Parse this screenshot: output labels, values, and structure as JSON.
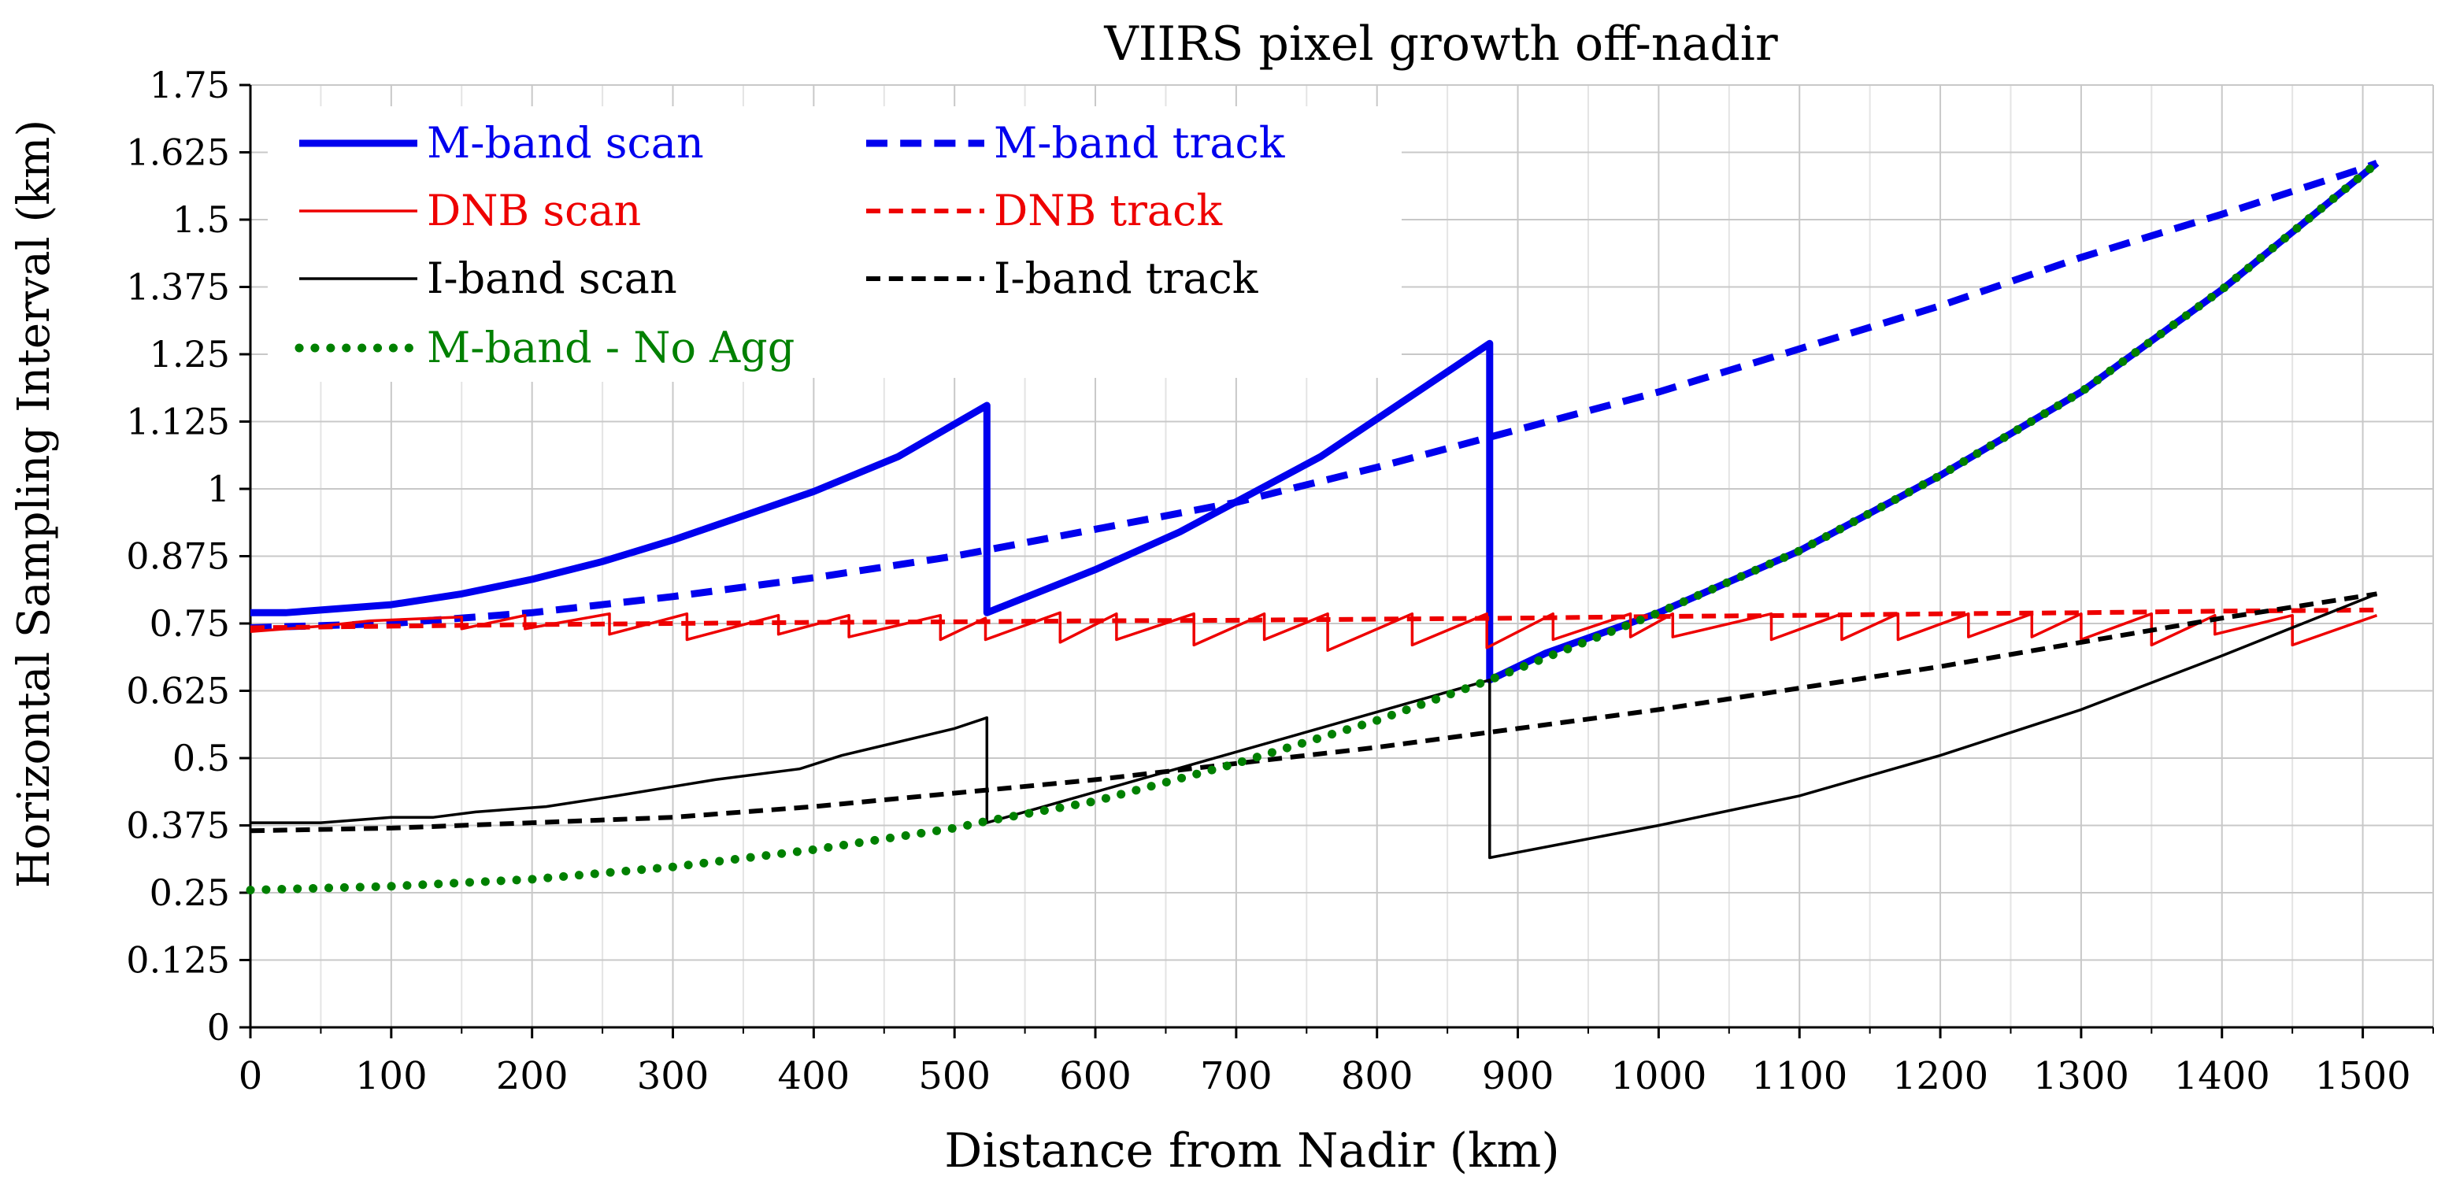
{
  "chart_data": {
    "type": "line",
    "title": "VIIRS pixel growth  off-nadir",
    "xlabel": "Distance from Nadir (km)",
    "ylabel": "Horizontal Sampling Interval (km)",
    "xlim": [
      0,
      1550
    ],
    "ylim": [
      0,
      1.75
    ],
    "grid": true,
    "legend_position": "top-left",
    "x_ticks": [
      0,
      100,
      200,
      300,
      400,
      500,
      600,
      700,
      800,
      900,
      1000,
      1100,
      1200,
      1300,
      1400,
      1500
    ],
    "x_tick_labels": [
      "0",
      "100",
      "200",
      "300",
      "400",
      "500",
      "600",
      "700",
      "800",
      "900",
      "1000",
      "1100",
      "1200",
      "1300",
      "1400",
      "1500"
    ],
    "y_ticks": [
      0,
      0.125,
      0.25,
      0.375,
      0.5,
      0.625,
      0.75,
      0.875,
      1,
      1.125,
      1.25,
      1.375,
      1.5,
      1.625,
      1.75
    ],
    "y_tick_labels": [
      "0",
      "0.125",
      "0.25",
      "0.375",
      "0.5",
      "0.625",
      "0.75",
      "0.875",
      "1",
      "1.125",
      "1.25",
      "1.375",
      "1.5",
      "1.625",
      "1.75"
    ],
    "series": [
      {
        "name": "M-band track",
        "color": "#0000ee",
        "style": "dashed",
        "width": "thick",
        "x": [
          0,
          100,
          200,
          300,
          400,
          500,
          600,
          700,
          800,
          900,
          1000,
          1100,
          1200,
          1300,
          1400,
          1500,
          1510
        ],
        "y": [
          0.742,
          0.75,
          0.77,
          0.8,
          0.835,
          0.875,
          0.925,
          0.975,
          1.04,
          1.11,
          1.18,
          1.26,
          1.34,
          1.43,
          1.51,
          1.595,
          1.605
        ]
      },
      {
        "name": "M-band scan",
        "color": "#0000ee",
        "style": "solid",
        "width": "thick",
        "x": [
          0,
          25,
          50,
          100,
          150,
          200,
          250,
          300,
          350,
          400,
          460,
          523,
          523,
          600,
          660,
          760,
          880,
          880,
          920,
          1000,
          1100,
          1200,
          1300,
          1400,
          1510
        ],
        "y": [
          0.77,
          0.77,
          0.775,
          0.785,
          0.805,
          0.832,
          0.865,
          0.905,
          0.95,
          0.995,
          1.06,
          1.155,
          0.77,
          0.85,
          0.92,
          1.06,
          1.27,
          0.645,
          0.695,
          0.77,
          0.885,
          1.025,
          1.18,
          1.37,
          1.605
        ]
      },
      {
        "name": "DNB track",
        "color": "#ee0000",
        "style": "dashed",
        "width": "medium",
        "x": [
          0,
          100,
          200,
          300,
          400,
          500,
          600,
          700,
          800,
          900,
          1000,
          1100,
          1200,
          1300,
          1400,
          1510
        ],
        "y": [
          0.742,
          0.745,
          0.748,
          0.75,
          0.752,
          0.753,
          0.755,
          0.756,
          0.758,
          0.76,
          0.763,
          0.765,
          0.768,
          0.77,
          0.773,
          0.775
        ]
      },
      {
        "name": "DNB scan",
        "color": "#ee0000",
        "style": "solid",
        "width": "thin",
        "x": [
          0,
          50,
          85,
          85,
          150,
          150,
          195,
          195,
          255,
          255,
          310,
          310,
          375,
          375,
          425,
          425,
          490,
          490,
          522,
          522,
          575,
          575,
          615,
          615,
          670,
          670,
          720,
          720,
          765,
          765,
          825,
          825,
          878,
          878,
          925,
          925,
          980,
          980,
          1010,
          1010,
          1080,
          1080,
          1130,
          1130,
          1170,
          1170,
          1220,
          1220,
          1265,
          1265,
          1300,
          1300,
          1350,
          1350,
          1395,
          1395,
          1450,
          1450,
          1510
        ],
        "y": [
          0.735,
          0.745,
          0.755,
          0.755,
          0.762,
          0.74,
          0.765,
          0.74,
          0.768,
          0.73,
          0.768,
          0.72,
          0.765,
          0.73,
          0.765,
          0.725,
          0.765,
          0.72,
          0.76,
          0.72,
          0.77,
          0.715,
          0.768,
          0.72,
          0.768,
          0.71,
          0.768,
          0.72,
          0.768,
          0.7,
          0.768,
          0.71,
          0.768,
          0.705,
          0.768,
          0.72,
          0.768,
          0.725,
          0.768,
          0.725,
          0.768,
          0.72,
          0.768,
          0.72,
          0.768,
          0.72,
          0.768,
          0.725,
          0.768,
          0.725,
          0.768,
          0.72,
          0.768,
          0.71,
          0.765,
          0.73,
          0.765,
          0.71,
          0.765
        ]
      },
      {
        "name": "I-band track",
        "color": "#000000",
        "style": "dashed",
        "width": "medium",
        "x": [
          0,
          100,
          200,
          300,
          400,
          500,
          600,
          700,
          800,
          900,
          1000,
          1100,
          1200,
          1300,
          1400,
          1510
        ],
        "y": [
          0.365,
          0.37,
          0.38,
          0.39,
          0.41,
          0.435,
          0.46,
          0.49,
          0.52,
          0.555,
          0.59,
          0.63,
          0.67,
          0.715,
          0.76,
          0.805
        ]
      },
      {
        "name": "I-band scan",
        "color": "#000000",
        "style": "solid",
        "width": "thin",
        "x": [
          0,
          50,
          100,
          130,
          160,
          210,
          260,
          330,
          390,
          420,
          460,
          500,
          523,
          523,
          880,
          880,
          880,
          940,
          1000,
          1100,
          1200,
          1300,
          1400,
          1510
        ],
        "y": [
          0.38,
          0.38,
          0.39,
          0.39,
          0.4,
          0.41,
          0.43,
          0.46,
          0.48,
          0.505,
          0.53,
          0.555,
          0.575,
          0.38,
          0.645,
          0.645,
          0.315,
          0.345,
          0.375,
          0.43,
          0.505,
          0.59,
          0.69,
          0.805
        ]
      },
      {
        "name": "M-band - No Agg",
        "color": "#008000",
        "style": "dotted",
        "width": "thick",
        "x": [
          0,
          100,
          200,
          300,
          400,
          500,
          523,
          600,
          700,
          800,
          880,
          1000,
          1100,
          1200,
          1300,
          1400,
          1510
        ],
        "y": [
          0.255,
          0.262,
          0.275,
          0.298,
          0.33,
          0.37,
          0.383,
          0.42,
          0.49,
          0.57,
          0.645,
          0.77,
          0.885,
          1.025,
          1.18,
          1.37,
          1.605
        ]
      }
    ],
    "legend": [
      {
        "series": "M-band scan",
        "label": "M-band scan"
      },
      {
        "series": "M-band track",
        "label": "M-band track"
      },
      {
        "series": "DNB scan",
        "label": "DNB scan"
      },
      {
        "series": "DNB track",
        "label": "DNB track"
      },
      {
        "series": "I-band scan",
        "label": "I-band scan"
      },
      {
        "series": "I-band track",
        "label": "I-band track"
      },
      {
        "series": "M-band - No Agg",
        "label": "M-band - No Agg"
      }
    ]
  }
}
